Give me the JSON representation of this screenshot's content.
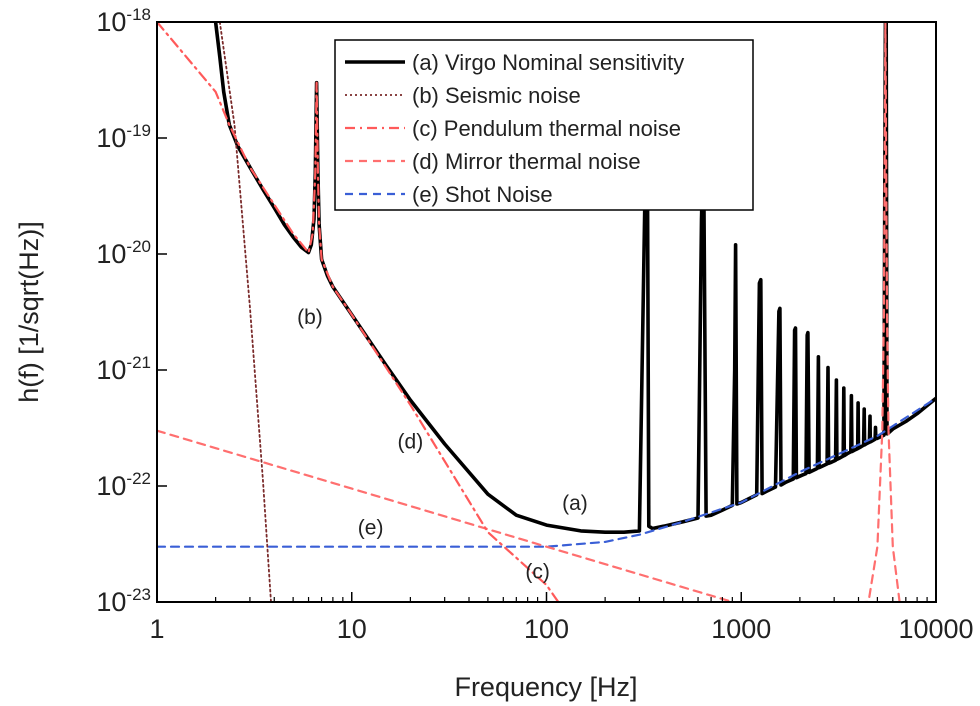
{
  "chart_data": {
    "type": "line",
    "xlabel": "Frequency [Hz]",
    "ylabel": "h(f) [1/sqrt(Hz)]",
    "xscale": "log",
    "yscale": "log",
    "xlim": [
      1,
      10000
    ],
    "ylim": [
      1e-23,
      1e-18
    ],
    "grid": false,
    "legend_position": "top-right",
    "x_ticks": [
      {
        "value": 1,
        "label": "1"
      },
      {
        "value": 10,
        "label": "10"
      },
      {
        "value": 100,
        "label": "100"
      },
      {
        "value": 1000,
        "label": "1000"
      },
      {
        "value": 10000,
        "label": "10000"
      }
    ],
    "y_ticks": [
      {
        "value": 1e-18,
        "base": "10",
        "exp": "-18"
      },
      {
        "value": 1e-19,
        "base": "10",
        "exp": "-19"
      },
      {
        "value": 1e-20,
        "base": "10",
        "exp": "-20"
      },
      {
        "value": 1e-21,
        "base": "10",
        "exp": "-21"
      },
      {
        "value": 1e-22,
        "base": "10",
        "exp": "-22"
      },
      {
        "value": 1e-23,
        "base": "10",
        "exp": "-23"
      }
    ],
    "series": [
      {
        "name": "(a) Virgo Nominal sensitivity",
        "color": "#000000",
        "style": "solid",
        "x": [
          2.0,
          2.1,
          2.2,
          2.35,
          2.6,
          3.0,
          3.5,
          4.0,
          4.5,
          5.0,
          5.5,
          6.0,
          6.2,
          6.4,
          6.5,
          6.6,
          6.7,
          6.8,
          7.0,
          7.5,
          8.0,
          10,
          15,
          20,
          30,
          50,
          70,
          100,
          150,
          200,
          250,
          300,
          320,
          325,
          330,
          335,
          350,
          400,
          500,
          600,
          625,
          640,
          660,
          700,
          800,
          900,
          925,
          935,
          950,
          1000,
          1100,
          1200,
          1240,
          1260,
          1280,
          1350,
          1500,
          1560,
          1580,
          1600,
          1700,
          1850,
          1880,
          1900,
          1920,
          2050,
          2150,
          2180,
          2200,
          2230,
          2400,
          2460,
          2490,
          2510,
          2600,
          2760,
          2790,
          2810,
          2900,
          3050,
          3080,
          3100,
          3200,
          3340,
          3360,
          3380,
          3500,
          3650,
          3680,
          3700,
          3800,
          3960,
          3980,
          4000,
          4100,
          4250,
          4280,
          4300,
          4400,
          4550,
          4580,
          4600,
          4700,
          4870,
          4890,
          4910,
          5000,
          5300,
          5400,
          5500,
          5550,
          5600,
          5700,
          6000,
          7000,
          8000,
          10000
        ],
        "y": [
          1e-18,
          5e-19,
          2.5e-19,
          1.3e-19,
          8.5e-20,
          5.6e-20,
          3.6e-20,
          2.5e-20,
          1.8e-20,
          1.4e-20,
          1.15e-20,
          1.03e-20,
          1.2e-20,
          2e-20,
          5e-20,
          3e-19,
          5e-20,
          1.8e-20,
          9e-21,
          6.5e-21,
          5.2e-21,
          3e-21,
          1.1e-21,
          5.5e-22,
          2.3e-22,
          8.5e-23,
          5.6e-23,
          4.6e-23,
          4.1e-23,
          4e-23,
          4e-23,
          4.1e-23,
          3e-20,
          1e-19,
          4e-20,
          4.5e-23,
          4.3e-23,
          4.5e-23,
          4.9e-23,
          5.3e-23,
          2e-20,
          1e-19,
          5.5e-23,
          5.6e-23,
          6.2e-23,
          6.8e-23,
          1e-21,
          1.2e-20,
          7e-23,
          7.2e-23,
          7.8e-23,
          8.4e-23,
          5.6e-21,
          6e-21,
          8.6e-23,
          9e-23,
          9.8e-23,
          3.2e-21,
          3.4e-21,
          1.02e-22,
          1.08e-22,
          1.15e-22,
          2.2e-21,
          2.3e-21,
          1.18e-22,
          1.24e-22,
          1.28e-22,
          2e-21,
          2.1e-21,
          1.31e-22,
          1.39e-22,
          1.42e-22,
          1.3e-21,
          1.44e-22,
          1.48e-22,
          1.55e-22,
          1.05e-21,
          1.57e-22,
          1.6e-22,
          1.67e-22,
          8.2e-22,
          1.7e-22,
          1.74e-22,
          1.81e-22,
          7e-22,
          1.83e-22,
          1.9e-22,
          1.97e-22,
          6e-22,
          1.98e-22,
          2.03e-22,
          2.1e-22,
          5.2e-22,
          2.12e-22,
          2.17e-22,
          2.25e-22,
          4.6e-22,
          2.26e-22,
          2.32e-22,
          2.38e-22,
          4e-22,
          2.4e-22,
          2.45e-22,
          2.53e-22,
          3.2e-22,
          2.56e-22,
          2.58e-22,
          2.7e-22,
          2.74e-22,
          1e-18,
          1e-18,
          2.82e-22,
          2.87e-22,
          3.1e-22,
          3.6e-22,
          4.2e-22,
          5.7e-22
        ]
      },
      {
        "name": "(b) Seismic noise",
        "color": "#7a2a2a",
        "style": "dotted",
        "x": [
          2.1,
          2.5,
          3.0,
          3.5,
          3.85
        ],
        "y": [
          1e-18,
          1.3e-19,
          3.5e-21,
          1.1e-22,
          1e-23
        ]
      },
      {
        "name": "(c) Pendulum thermal noise",
        "color": "#ff5a5a",
        "style": "dashdot",
        "x": [
          1.0,
          2.0,
          2.35,
          3.0,
          5.0,
          6.0,
          6.3,
          6.5,
          6.6,
          6.7,
          6.8,
          7.0,
          8.0,
          10,
          20,
          50,
          100,
          115
        ],
        "y": [
          1e-18,
          2.5e-19,
          1.3e-19,
          5.6e-20,
          1.5e-20,
          1.03e-20,
          1.5e-20,
          5e-20,
          3e-19,
          5e-20,
          1.8e-20,
          9e-21,
          5.2e-21,
          3e-21,
          5e-22,
          4e-23,
          1.4e-23,
          1e-23
        ]
      },
      {
        "name": "(d) Mirror thermal noise",
        "color": "#ff6f6f",
        "style": "dashed",
        "x": [
          1,
          10,
          100,
          1000,
          4500,
          5000,
          5300,
          5400,
          5500,
          5600,
          5700,
          6000,
          6500
        ],
        "y": [
          3e-22,
          9.5e-23,
          3e-23,
          9.5e-24,
          1e-23,
          3e-23,
          3e-22,
          3e-21,
          1e-18,
          3e-21,
          3e-22,
          3e-23,
          1e-23
        ]
      },
      {
        "name": "(e) Shot Noise",
        "color": "#3a5fd6",
        "style": "dashed",
        "x": [
          1,
          100,
          200,
          300,
          500,
          1000,
          2000,
          5000,
          10000
        ],
        "y": [
          3e-23,
          3e-23,
          3.3e-23,
          3.8e-23,
          4.9e-23,
          7.2e-23,
          1.32e-22,
          2.7e-22,
          5.7e-22
        ]
      }
    ],
    "annotations": [
      {
        "text": "(a)",
        "x": 140,
        "y": 6.2e-23
      },
      {
        "text": "(b)",
        "x": 6.1,
        "y": 2.5e-21
      },
      {
        "text": "(c)",
        "x": 90,
        "y": 1.6e-23
      },
      {
        "text": "(d)",
        "x": 20,
        "y": 2.1e-22
      },
      {
        "text": "(e)",
        "x": 12.5,
        "y": 3.8e-23
      }
    ]
  }
}
